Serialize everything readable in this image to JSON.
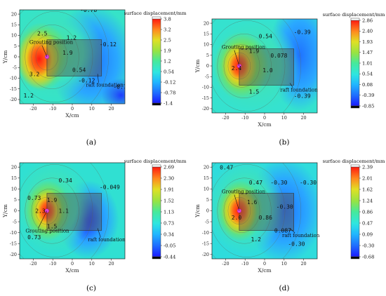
{
  "chart_data": [
    {
      "type": "heatmap",
      "panel_label": "(a)",
      "xlabel": "X/cm",
      "ylabel": "Y/cm",
      "xlim": [
        -27,
        27
      ],
      "ylim": [
        -22,
        22
      ],
      "x_ticks": [
        "-20",
        "-10",
        "0",
        "10",
        "20"
      ],
      "y_ticks": [
        "20",
        "15",
        "10",
        "5",
        "0",
        "-5",
        "-10",
        "-15",
        "-20"
      ],
      "colorbar_title": "surface displacement/mm",
      "colorbar_ticks": [
        "3.8",
        "3.2",
        "2.5",
        "1.9",
        "1.2",
        "0.54",
        "-0.12",
        "-0.78",
        "-1.4"
      ],
      "grouting_position": [
        -13,
        0
      ],
      "raft_foundation": {
        "x": [
          -13,
          15
        ],
        "y": [
          -9,
          8
        ]
      },
      "contour_labels": [
        {
          "text": "2.5",
          "x": -18,
          "y": 10
        },
        {
          "text": "3.2",
          "x": -22,
          "y": -9
        },
        {
          "text": "1.9",
          "x": -5,
          "y": 1
        },
        {
          "text": "1.2",
          "x": -3,
          "y": 8
        },
        {
          "text": "0.54",
          "x": 0,
          "y": -7
        },
        {
          "text": "-0.12",
          "x": 14,
          "y": 5
        },
        {
          "text": "-0.12",
          "x": 3,
          "y": -12
        },
        {
          "text": "-0.78",
          "x": 4,
          "y": 21
        },
        {
          "text": "-0.78",
          "x": 21,
          "y": -15
        },
        {
          "text": "1.2",
          "x": -25,
          "y": -19
        }
      ],
      "annotations": [
        {
          "text": "Grouting position",
          "x": -22,
          "y": 6
        },
        {
          "text": "raft foundation",
          "x": 7,
          "y": -14
        }
      ]
    },
    {
      "type": "heatmap",
      "panel_label": "(b)",
      "xlabel": "X/cm",
      "ylabel": "Y/cm",
      "xlim": [
        -27,
        27
      ],
      "ylim": [
        -22,
        22
      ],
      "x_ticks": [
        "-20",
        "-10",
        "0",
        "10",
        "20"
      ],
      "y_ticks": [
        "20",
        "15",
        "10",
        "5",
        "0",
        "-5",
        "-10",
        "-15",
        "-20"
      ],
      "colorbar_title": "surface displacement/mm",
      "colorbar_ticks": [
        "2.86",
        "2.40",
        "1.93",
        "1.47",
        "1.01",
        "0.54",
        "0.08",
        "-0.39",
        "-0.85"
      ],
      "grouting_position": [
        -13,
        0
      ],
      "raft_foundation": {
        "x": [
          -13,
          15
        ],
        "y": [
          -9,
          8
        ]
      },
      "contour_labels": [
        {
          "text": "0.54",
          "x": -3,
          "y": 13
        },
        {
          "text": "-0.39",
          "x": 15,
          "y": 15
        },
        {
          "text": "1.9",
          "x": -8,
          "y": 6
        },
        {
          "text": "0.078",
          "x": 3,
          "y": 4
        },
        {
          "text": "2.4",
          "x": -17,
          "y": -2
        },
        {
          "text": "1.0",
          "x": -1,
          "y": -3
        },
        {
          "text": "1.5",
          "x": -8,
          "y": -13
        },
        {
          "text": "-0.39",
          "x": 15,
          "y": -15
        }
      ],
      "annotations": [
        {
          "text": "Grouting position",
          "x": -22,
          "y": 8
        },
        {
          "text": "raft foundation",
          "x": 8,
          "y": -12
        }
      ]
    },
    {
      "type": "heatmap",
      "panel_label": "(c)",
      "xlabel": "X/cm",
      "ylabel": "Y/cm",
      "xlim": [
        -27,
        27
      ],
      "ylim": [
        -22,
        22
      ],
      "x_ticks": [
        "-20",
        "-10",
        "0",
        "10",
        "20"
      ],
      "y_ticks": [
        "20",
        "15",
        "10",
        "5",
        "0",
        "-5",
        "-10",
        "-15",
        "-20"
      ],
      "colorbar_title": "surface displacement/mm",
      "colorbar_ticks": [
        "2.69",
        "2.30",
        "1.91",
        "1.52",
        "1.13",
        "0.73",
        "0.34",
        "-0.05",
        "-0.44"
      ],
      "grouting_position": [
        -13,
        0
      ],
      "raft_foundation": {
        "x": [
          -13,
          15
        ],
        "y": [
          -9,
          8
        ]
      },
      "contour_labels": [
        {
          "text": "0.34",
          "x": -7,
          "y": 13
        },
        {
          "text": "-0.049",
          "x": 14,
          "y": 10
        },
        {
          "text": "0.73",
          "x": -23,
          "y": 5
        },
        {
          "text": "1.9",
          "x": -13,
          "y": 4
        },
        {
          "text": "2.3",
          "x": -19,
          "y": -1
        },
        {
          "text": "1.1",
          "x": -7,
          "y": -1
        },
        {
          "text": "1.5",
          "x": -13,
          "y": -8
        },
        {
          "text": "0.73",
          "x": -23,
          "y": -13
        }
      ],
      "annotations": [
        {
          "text": "Grouting position",
          "x": -24,
          "y": -10
        },
        {
          "text": "raft foundation",
          "x": 8,
          "y": -14
        }
      ]
    },
    {
      "type": "heatmap",
      "panel_label": "(d)",
      "xlabel": "X/cm",
      "ylabel": "Y/cm",
      "xlim": [
        -27,
        27
      ],
      "ylim": [
        -22,
        22
      ],
      "x_ticks": [
        "-20",
        "-10",
        "0",
        "10",
        "20"
      ],
      "y_ticks": [
        "20",
        "15",
        "10",
        "5",
        "0",
        "-5",
        "-10",
        "-15",
        "-20"
      ],
      "colorbar_title": "surface displacement/mm",
      "colorbar_ticks": [
        "2.39",
        "2.01",
        "1.62",
        "1.24",
        "0.86",
        "0.47",
        "0.09",
        "-0.30",
        "-0.68"
      ],
      "grouting_position": [
        -13,
        0
      ],
      "raft_foundation": {
        "x": [
          -13,
          15
        ],
        "y": [
          -9,
          8
        ]
      },
      "contour_labels": [
        {
          "text": "0.47",
          "x": -23,
          "y": 19
        },
        {
          "text": "0.47",
          "x": -8,
          "y": 12
        },
        {
          "text": "-0.30",
          "x": 3,
          "y": 12
        },
        {
          "text": "-0.30",
          "x": 18,
          "y": 12
        },
        {
          "text": "1.6",
          "x": -9,
          "y": 3
        },
        {
          "text": "-0.30",
          "x": 6,
          "y": 1
        },
        {
          "text": "2.0",
          "x": -17,
          "y": -4
        },
        {
          "text": "0.86",
          "x": -3,
          "y": -4
        },
        {
          "text": "1.2",
          "x": -7,
          "y": -14
        },
        {
          "text": "0.087",
          "x": 5,
          "y": -10
        },
        {
          "text": "-0.30",
          "x": 12,
          "y": -16
        }
      ],
      "annotations": [
        {
          "text": "Grouting position",
          "x": -22,
          "y": 8
        },
        {
          "text": "raft foundation",
          "x": 9,
          "y": -12
        }
      ]
    }
  ]
}
